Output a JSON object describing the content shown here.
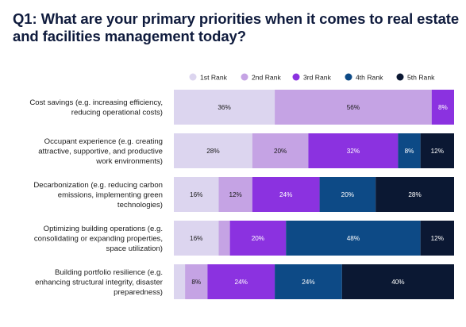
{
  "chart_data": {
    "type": "bar",
    "orientation": "horizontal",
    "stacked": true,
    "title": "Q1: What are your primary priorities when it comes to real estate and facilities management today?",
    "categories": [
      [
        "Cost savings (e.g. increasing efficiency,",
        "reducing operational costs)"
      ],
      [
        "Occupant experience (e.g. creating",
        "attractive, supportive, and productive",
        "work environments)"
      ],
      [
        "Decarbonization (e.g. reducing carbon",
        "emissions, implementing green",
        "technologies)"
      ],
      [
        "Optimizing building operations (e.g.",
        "consolidating or expanding properties,",
        "space utilization)"
      ],
      [
        "Building portfolio resilience (e.g.",
        "enhancing structural integrity, disaster",
        "preparedness)"
      ]
    ],
    "series": [
      {
        "name": "1st Rank",
        "color": "#dcd5ef",
        "text_color": "#1a1a1a",
        "values": [
          36,
          28,
          16,
          16,
          4
        ],
        "labels": [
          "36%",
          "28%",
          "16%",
          "16%",
          ""
        ]
      },
      {
        "name": "2nd Rank",
        "color": "#c5a3e4",
        "text_color": "#1a1a1a",
        "values": [
          56,
          20,
          12,
          4,
          8
        ],
        "labels": [
          "56%",
          "20%",
          "12%",
          "",
          "8%"
        ]
      },
      {
        "name": "3rd Rank",
        "color": "#8b32e0",
        "text_color": "#ffffff",
        "values": [
          8,
          32,
          24,
          20,
          24
        ],
        "labels": [
          "8%",
          "32%",
          "24%",
          "20%",
          "24%"
        ]
      },
      {
        "name": "4th Rank",
        "color": "#0d4a86",
        "text_color": "#ffffff",
        "values": [
          0,
          8,
          20,
          48,
          24
        ],
        "labels": [
          "",
          "8%",
          "20%",
          "48%",
          "24%"
        ]
      },
      {
        "name": "5th Rank",
        "color": "#0b1833",
        "text_color": "#ffffff",
        "values": [
          0,
          12,
          28,
          12,
          40
        ],
        "labels": [
          "",
          "12%",
          "28%",
          "12%",
          "40%"
        ]
      }
    ],
    "xlim": [
      0,
      100
    ],
    "legend_position": "top-right",
    "grid": false
  }
}
